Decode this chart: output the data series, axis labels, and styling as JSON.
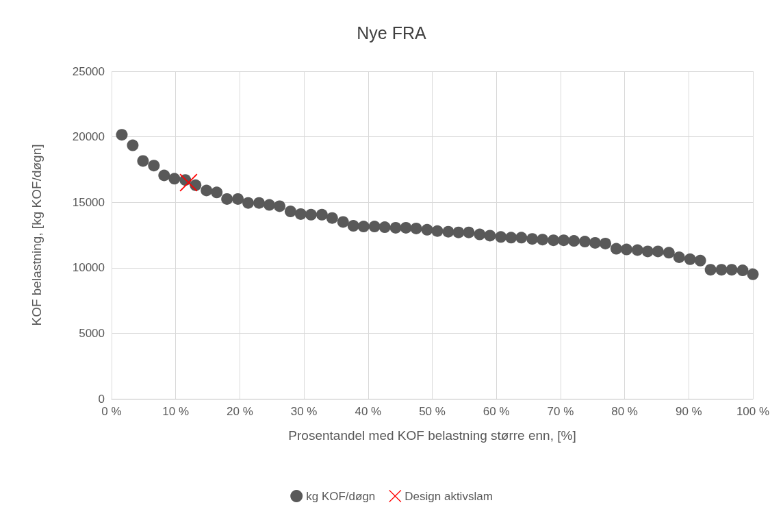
{
  "chart_data": {
    "type": "scatter",
    "title": "Nye FRA",
    "xlabel": "Prosentandel med KOF belastning større enn, [%]",
    "ylabel": "KOF belastning, [kg KOF/døgn]",
    "xlim": [
      0,
      100
    ],
    "xticks": [
      {
        "value": 0,
        "label": "0 %"
      },
      {
        "value": 10,
        "label": "10 %"
      },
      {
        "value": 20,
        "label": "20 %"
      },
      {
        "value": 30,
        "label": "30 %"
      },
      {
        "value": 40,
        "label": "40 %"
      },
      {
        "value": 50,
        "label": "50 %"
      },
      {
        "value": 60,
        "label": "60 %"
      },
      {
        "value": 70,
        "label": "70 %"
      },
      {
        "value": 80,
        "label": "80 %"
      },
      {
        "value": 90,
        "label": "90 %"
      },
      {
        "value": 100,
        "label": "100 %"
      }
    ],
    "ylim": [
      0,
      25000
    ],
    "yticks": [
      0,
      5000,
      10000,
      15000,
      20000,
      25000
    ],
    "grid": true,
    "legend": "bottom",
    "series": [
      {
        "name": "kg KOF/døgn",
        "color": "#595959",
        "marker": "circle",
        "x": [
          1.6,
          3.3,
          4.9,
          6.6,
          8.2,
          9.8,
          11.5,
          13.1,
          14.8,
          16.4,
          18.0,
          19.7,
          21.3,
          23.0,
          24.6,
          26.2,
          27.9,
          29.5,
          31.1,
          32.8,
          34.4,
          36.1,
          37.7,
          39.3,
          41.0,
          42.6,
          44.3,
          45.9,
          47.5,
          49.2,
          50.8,
          52.5,
          54.1,
          55.7,
          57.4,
          59.0,
          60.7,
          62.3,
          63.9,
          65.6,
          67.2,
          68.9,
          70.5,
          72.1,
          73.8,
          75.4,
          77.0,
          78.7,
          80.3,
          82.0,
          83.6,
          85.2,
          86.9,
          88.5,
          90.2,
          91.8,
          93.4,
          95.1,
          96.7,
          98.4,
          100
        ],
        "values": [
          20150,
          19350,
          18150,
          17800,
          17050,
          16800,
          16700,
          16300,
          15900,
          15750,
          15250,
          15250,
          14950,
          14950,
          14800,
          14700,
          14300,
          14100,
          14050,
          14050,
          13800,
          13500,
          13200,
          13150,
          13150,
          13100,
          13050,
          13050,
          13000,
          12900,
          12800,
          12750,
          12700,
          12700,
          12550,
          12450,
          12350,
          12300,
          12300,
          12200,
          12150,
          12100,
          12100,
          12050,
          12000,
          11900,
          11850,
          11450,
          11400,
          11350,
          11250,
          11250,
          11150,
          10800,
          10650,
          10550,
          9850,
          9850,
          9850,
          9800,
          9500
        ]
      },
      {
        "name": "Design aktivslam",
        "color": "#ff0000",
        "marker": "cross",
        "x": [
          12.0
        ],
        "values": [
          16500
        ]
      }
    ]
  }
}
